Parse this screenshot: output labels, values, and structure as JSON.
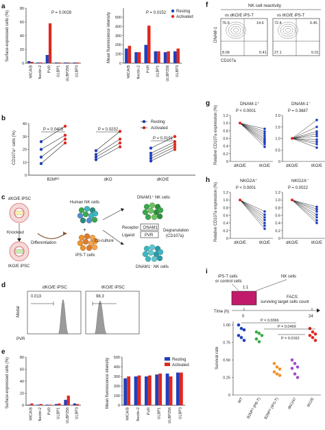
{
  "colors": {
    "resting": "#1f3fbf",
    "activated": "#e0281e",
    "orange": "#f0922a",
    "green": "#3aa84a",
    "purple": "#a14fd0",
    "cyan": "#3ab7c4",
    "pink": "#c21a6a",
    "gray_hist": "#9a9a9a"
  },
  "panels": {
    "a": {
      "letter": "a",
      "left": {
        "ylabel": "Surface-expressed cells (%)",
        "pvalue": "P = 0.0028",
        "yticks": [
          "0",
          "20",
          "40",
          "60",
          "80"
        ],
        "ylim": [
          0,
          80
        ]
      },
      "right": {
        "ylabel": "Mean fluorescence intensity",
        "pvalue": "P = 0.0152",
        "yticks": [
          "0",
          "100",
          "200",
          "300",
          "400",
          "500"
        ],
        "ylim": [
          0,
          600
        ]
      },
      "legend": {
        "resting": "Resting",
        "activated": "Activated"
      }
    },
    "b": {
      "letter": "b",
      "ylabel": "CD107a⁺ cells (%)",
      "yticks": [
        "0",
        "10",
        "20",
        "30",
        "40"
      ],
      "groups": [
        {
          "label": "B2Mᴷᴼ",
          "pvalue": "P = 0.0403"
        },
        {
          "label": "dKO",
          "pvalue": "P = 0.0232"
        },
        {
          "label": "dKO/E",
          "pvalue": "P = 0.0191"
        }
      ],
      "legend": {
        "resting": "Resting",
        "activated": "Activated"
      }
    },
    "c": {
      "letter": "c",
      "dko_label": "dKO/E iPSC",
      "knockout": "Knockout",
      "tko_label": "tKO/E iPSC",
      "pvr_label": "PVR",
      "differentiation": "Differentiation",
      "human_nk": "Human NK cells",
      "ips_t": "iPS-T cells",
      "coculture": "Co-culture",
      "dnam_pos": "DNAM1⁺ NK cells",
      "receptor": "Receptor",
      "ligand": "Ligand",
      "dnam1_box": "DNAM1",
      "pvr_box": "PVR",
      "degranulation": "Degranulation",
      "cd107a": "(CD107a)",
      "dnam_neg": "DNAM1⁻ NK cells"
    },
    "d": {
      "letter": "d",
      "left": {
        "title": "dKO/E iPSC",
        "value": "0.013"
      },
      "right": {
        "title": "tKO/E iPSC",
        "value": "98.3"
      },
      "ylabel": "Modal",
      "xlabel": "PVR"
    },
    "e": {
      "letter": "e",
      "left": {
        "ylabel": "Surface-expressed cells (%)",
        "yticks": [
          "0",
          "20",
          "40",
          "60",
          "80"
        ]
      },
      "right": {
        "ylabel": "Mean fluorescence intensity",
        "yticks": [
          "0",
          "100",
          "200",
          "300",
          "400",
          "500"
        ]
      },
      "legend": {
        "resting": "Resting",
        "activated": "Activated"
      }
    },
    "f": {
      "letter": "f",
      "title": "NK cell reactivity",
      "left_title": "vs dKO/E iPS-T",
      "right_title": "vs tKO/E iPS-T",
      "ylabel": "DNAM-1",
      "xlabel": "CD107a",
      "left_q": [
        "76.9",
        "14.6",
        "8.09",
        "0.41"
      ],
      "right_q": [
        "72.4",
        "0.45",
        "27.1",
        "0.01"
      ]
    },
    "g": {
      "letter": "g",
      "left_title": "DNAM-1⁺",
      "right_title": "DNAM-1⁻",
      "left_p": "P < 0.0001",
      "right_p": "P = 0.3687",
      "ylabel": "Relative CD107a expression (%)",
      "yticks": [
        "0",
        "0.2",
        "0.4",
        "0.6",
        "0.8",
        "1.0",
        "1.2"
      ],
      "right_yticks": [
        "0",
        "0.5",
        "1.0",
        "1.5",
        "2.0"
      ],
      "xcats": [
        "dKO/E",
        "tKO/E"
      ]
    },
    "h": {
      "letter": "h",
      "left_title": "NKG2A⁺",
      "right_title": "NKG2A⁻",
      "left_p": "P < 0.0001",
      "right_p": "P = 0.0022",
      "ylabel": "Relative CD107a expression (%)",
      "yticks": [
        "0",
        "0.2",
        "0.4",
        "0.6",
        "0.8",
        "1.0",
        "1.2"
      ],
      "xcats": [
        "dKO/E",
        "tKO/E"
      ]
    },
    "i": {
      "letter": "i",
      "ipst": "iPS-T cells",
      "or_control": "or control cells",
      "nk": "NK cells",
      "ratio": "1:1",
      "facs": "FACS:",
      "surviving": "surviving target cells count",
      "time": "Time (h)",
      "t0": "0",
      "t24": "24",
      "ylabel": "Survival rate",
      "yticks": [
        "0",
        "0.25",
        "0.50",
        "0.75",
        "1.00"
      ],
      "pvals": [
        "P = 0.0066",
        "P = 0.0499",
        "P = 0.0162"
      ],
      "cats": [
        "WT",
        "B2Mᴷᴼ (PB-T)",
        "B2Mᴷᴼ (iPS-T)",
        "dKO/47",
        "tKO/E"
      ]
    }
  },
  "chart_data": [
    {
      "panel": "a-left",
      "type": "bar",
      "categories": [
        "MICA/B",
        "Nectin-2",
        "PVR",
        "ULBP1",
        "ULBP256",
        "ULBP3"
      ],
      "series": [
        {
          "name": "Resting",
          "values": [
            3,
            1,
            12,
            1,
            1,
            1
          ]
        },
        {
          "name": "Activated",
          "values": [
            2,
            1,
            58,
            1,
            1,
            1
          ]
        }
      ],
      "ylim": [
        0,
        80
      ],
      "ylabel": "Surface-expressed cells (%)"
    },
    {
      "panel": "a-right",
      "type": "bar",
      "categories": [
        "MICA/B",
        "Nectin-2",
        "PVR",
        "ULBP1",
        "ULBP256",
        "ULBP3"
      ],
      "series": [
        {
          "name": "Resting",
          "values": [
            160,
            120,
            200,
            130,
            120,
            130
          ]
        },
        {
          "name": "Activated",
          "values": [
            190,
            120,
            410,
            130,
            130,
            160
          ]
        }
      ],
      "ylim": [
        0,
        600
      ],
      "ylabel": "Mean fluorescence intensity"
    },
    {
      "panel": "b",
      "type": "scatter",
      "categories": [
        "B2Mᴷᴼ",
        "dKO",
        "dKO/E"
      ],
      "series": [
        {
          "name": "Resting",
          "values": [
            [
              9,
              14,
              20,
              26
            ],
            [
              12,
              14,
              16,
              19
            ],
            [
              11,
              13,
              15,
              17,
              21
            ]
          ]
        },
        {
          "name": "Activated",
          "values": [
            [
              25,
              28,
              31,
              38
            ],
            [
              22,
              25,
              28,
              34
            ],
            [
              20,
              22,
              24,
              26,
              30
            ]
          ]
        }
      ],
      "ylabel": "CD107a⁺ cells (%)"
    },
    {
      "panel": "e-left",
      "type": "bar",
      "categories": [
        "MICA/B",
        "Nectin-2",
        "PVR",
        "ULBP1",
        "ULBP256",
        "ULBP3"
      ],
      "series": [
        {
          "name": "Resting",
          "values": [
            1,
            1,
            1,
            2,
            9,
            3
          ]
        },
        {
          "name": "Activated",
          "values": [
            3,
            2,
            1,
            3,
            16,
            2
          ]
        }
      ],
      "ylim": [
        0,
        80
      ],
      "ylabel": "Surface-expressed cells (%)"
    },
    {
      "panel": "e-right",
      "type": "bar",
      "categories": [
        "MICA/B",
        "Nectin-2",
        "PVR",
        "ULBP1",
        "ULBP256",
        "ULBP3"
      ],
      "series": [
        {
          "name": "Resting",
          "values": [
            280,
            300,
            300,
            320,
            330,
            340
          ]
        },
        {
          "name": "Activated",
          "values": [
            300,
            310,
            310,
            330,
            300,
            340
          ]
        }
      ],
      "ylim": [
        0,
        500
      ],
      "ylabel": "Mean fluorescence intensity"
    },
    {
      "panel": "g-left",
      "type": "line",
      "x": [
        "dKO/E",
        "tKO/E"
      ],
      "pairs": [
        [
          1,
          0.85
        ],
        [
          1,
          0.78
        ],
        [
          1,
          0.72
        ],
        [
          1,
          0.66
        ],
        [
          1,
          0.6
        ],
        [
          1,
          0.55
        ],
        [
          1,
          0.5
        ],
        [
          1,
          0.45
        ],
        [
          1,
          0.38
        ]
      ]
    },
    {
      "panel": "g-right",
      "type": "line",
      "x": [
        "dKO/E",
        "tKO/E"
      ],
      "pairs": [
        [
          1,
          1.8
        ],
        [
          1,
          1.5
        ],
        [
          1,
          1.3
        ],
        [
          1,
          1.2
        ],
        [
          1,
          1.1
        ],
        [
          1,
          0.95
        ],
        [
          1,
          0.85
        ],
        [
          1,
          0.75
        ],
        [
          1,
          0.6
        ]
      ]
    },
    {
      "panel": "h-left",
      "type": "line",
      "x": [
        "dKO/E",
        "tKO/E"
      ],
      "pairs": [
        [
          1,
          0.7
        ],
        [
          1,
          0.62
        ],
        [
          1,
          0.55
        ],
        [
          1,
          0.48
        ],
        [
          1,
          0.4
        ],
        [
          1,
          0.33
        ],
        [
          1,
          0.25
        ]
      ]
    },
    {
      "panel": "h-right",
      "type": "line",
      "x": [
        "dKO/E",
        "tKO/E"
      ],
      "pairs": [
        [
          1,
          0.82
        ],
        [
          1,
          0.76
        ],
        [
          1,
          0.7
        ],
        [
          1,
          0.62
        ],
        [
          1,
          0.55
        ],
        [
          1,
          0.47
        ],
        [
          1,
          0.4
        ]
      ]
    },
    {
      "panel": "i",
      "type": "scatter",
      "categories": [
        "WT",
        "B2Mᴷᴼ (PB-T)",
        "B2Mᴷᴼ (iPS-T)",
        "dKO/47",
        "tKO/E"
      ],
      "values": [
        [
          1.0,
          0.95,
          0.93,
          0.85,
          0.82,
          0.78
        ],
        [
          0.9,
          0.88,
          0.85,
          0.8,
          0.76
        ],
        [
          0.45,
          0.4,
          0.37,
          0.33,
          0.3,
          0.28
        ],
        [
          0.5,
          0.45,
          0.4,
          0.38,
          0.3,
          0.25
        ],
        [
          0.95,
          0.9,
          0.87,
          0.85,
          0.82,
          0.78
        ]
      ],
      "ylim": [
        0,
        1.05
      ],
      "ylabel": "Survival rate"
    }
  ]
}
